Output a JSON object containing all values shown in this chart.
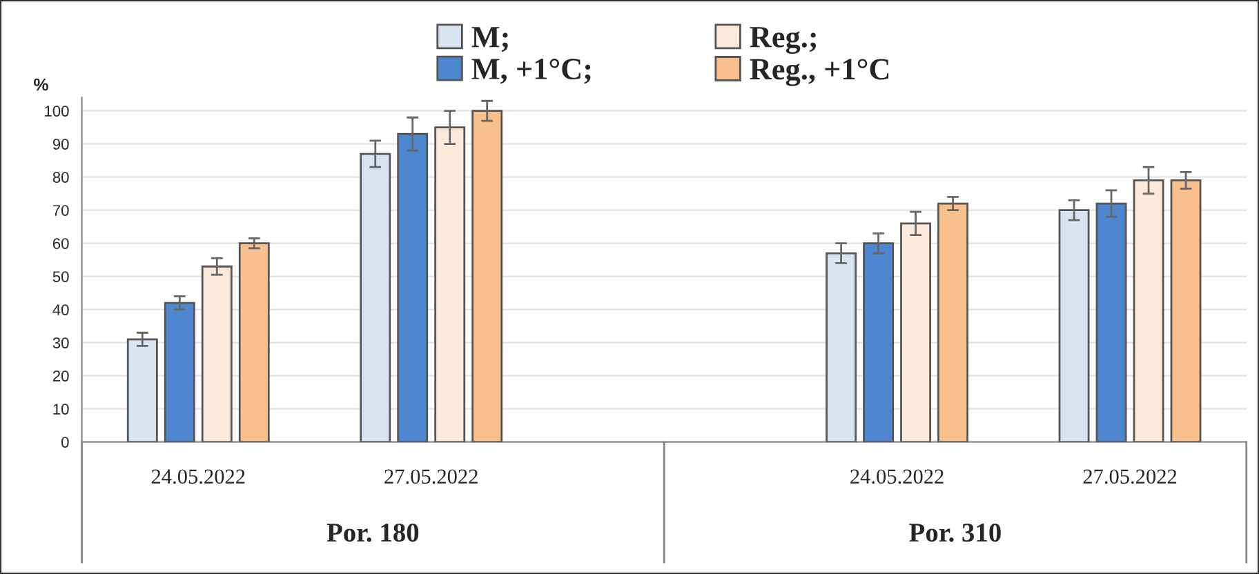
{
  "chart_data": {
    "type": "bar",
    "ylabel": "%",
    "categories": [
      "24.05.2022",
      "27.05.2022",
      null,
      "24.05.2022",
      "27.05.2022"
    ],
    "series": [
      {
        "name": "M;",
        "color": "#dae3f1",
        "values": [
          31,
          87,
          null,
          57,
          70
        ],
        "errors": [
          2,
          4,
          null,
          3,
          3
        ]
      },
      {
        "name": "M, +1°C;",
        "color": "#4e86d0",
        "values": [
          42,
          93,
          null,
          60,
          72
        ],
        "errors": [
          2,
          5,
          null,
          3,
          4
        ]
      },
      {
        "name": "Reg.;",
        "color": "#fde9d9",
        "values": [
          53,
          95,
          null,
          66,
          79
        ],
        "errors": [
          2.5,
          5,
          null,
          3.5,
          4
        ]
      },
      {
        "name": "Reg., +1°C",
        "color": "#f9bf8c",
        "values": [
          60,
          100,
          null,
          72,
          79
        ],
        "errors": [
          1.5,
          3,
          null,
          2,
          2.5
        ]
      }
    ],
    "annotations": [
      "Por. 180",
      "Por. 310"
    ],
    "ylim": [
      0,
      104
    ],
    "yticks": [
      0,
      10,
      20,
      30,
      40,
      50,
      60,
      70,
      80,
      90,
      100
    ],
    "grid": "y",
    "legend": "top"
  }
}
